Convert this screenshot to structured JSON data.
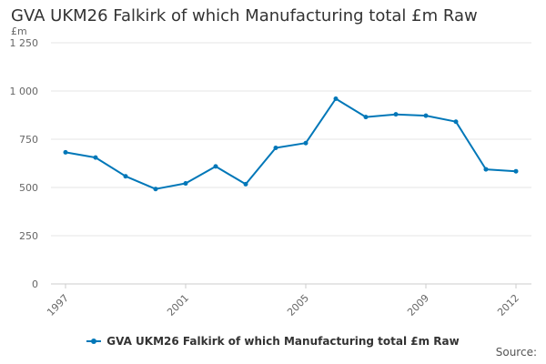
{
  "colors": {
    "series": "#0077b8",
    "grid": "#e6e6e6",
    "axis": "#cccccc"
  },
  "chart_data": {
    "type": "line",
    "title": "GVA UKM26 Falkirk of which Manufacturing total £m Raw",
    "ylabel": "£m",
    "xlabel": "",
    "x": [
      1997,
      1998,
      1999,
      2000,
      2001,
      2002,
      2003,
      2004,
      2005,
      2006,
      2007,
      2008,
      2009,
      2010,
      2011,
      2012
    ],
    "x_tick_labels": [
      "1997",
      "2001",
      "2005",
      "2009",
      "2012"
    ],
    "y_tick_labels": [
      "0",
      "250",
      "500",
      "750",
      "1 000",
      "1 250"
    ],
    "ylim": [
      0,
      1250
    ],
    "grid": true,
    "legend_position": "bottom",
    "series": [
      {
        "name": "GVA UKM26 Falkirk of which Manufacturing total £m Raw",
        "values": [
          682,
          655,
          558,
          492,
          521,
          609,
          517,
          705,
          730,
          960,
          865,
          879,
          872,
          841,
          594,
          584
        ]
      }
    ]
  },
  "source_label": "Source:"
}
